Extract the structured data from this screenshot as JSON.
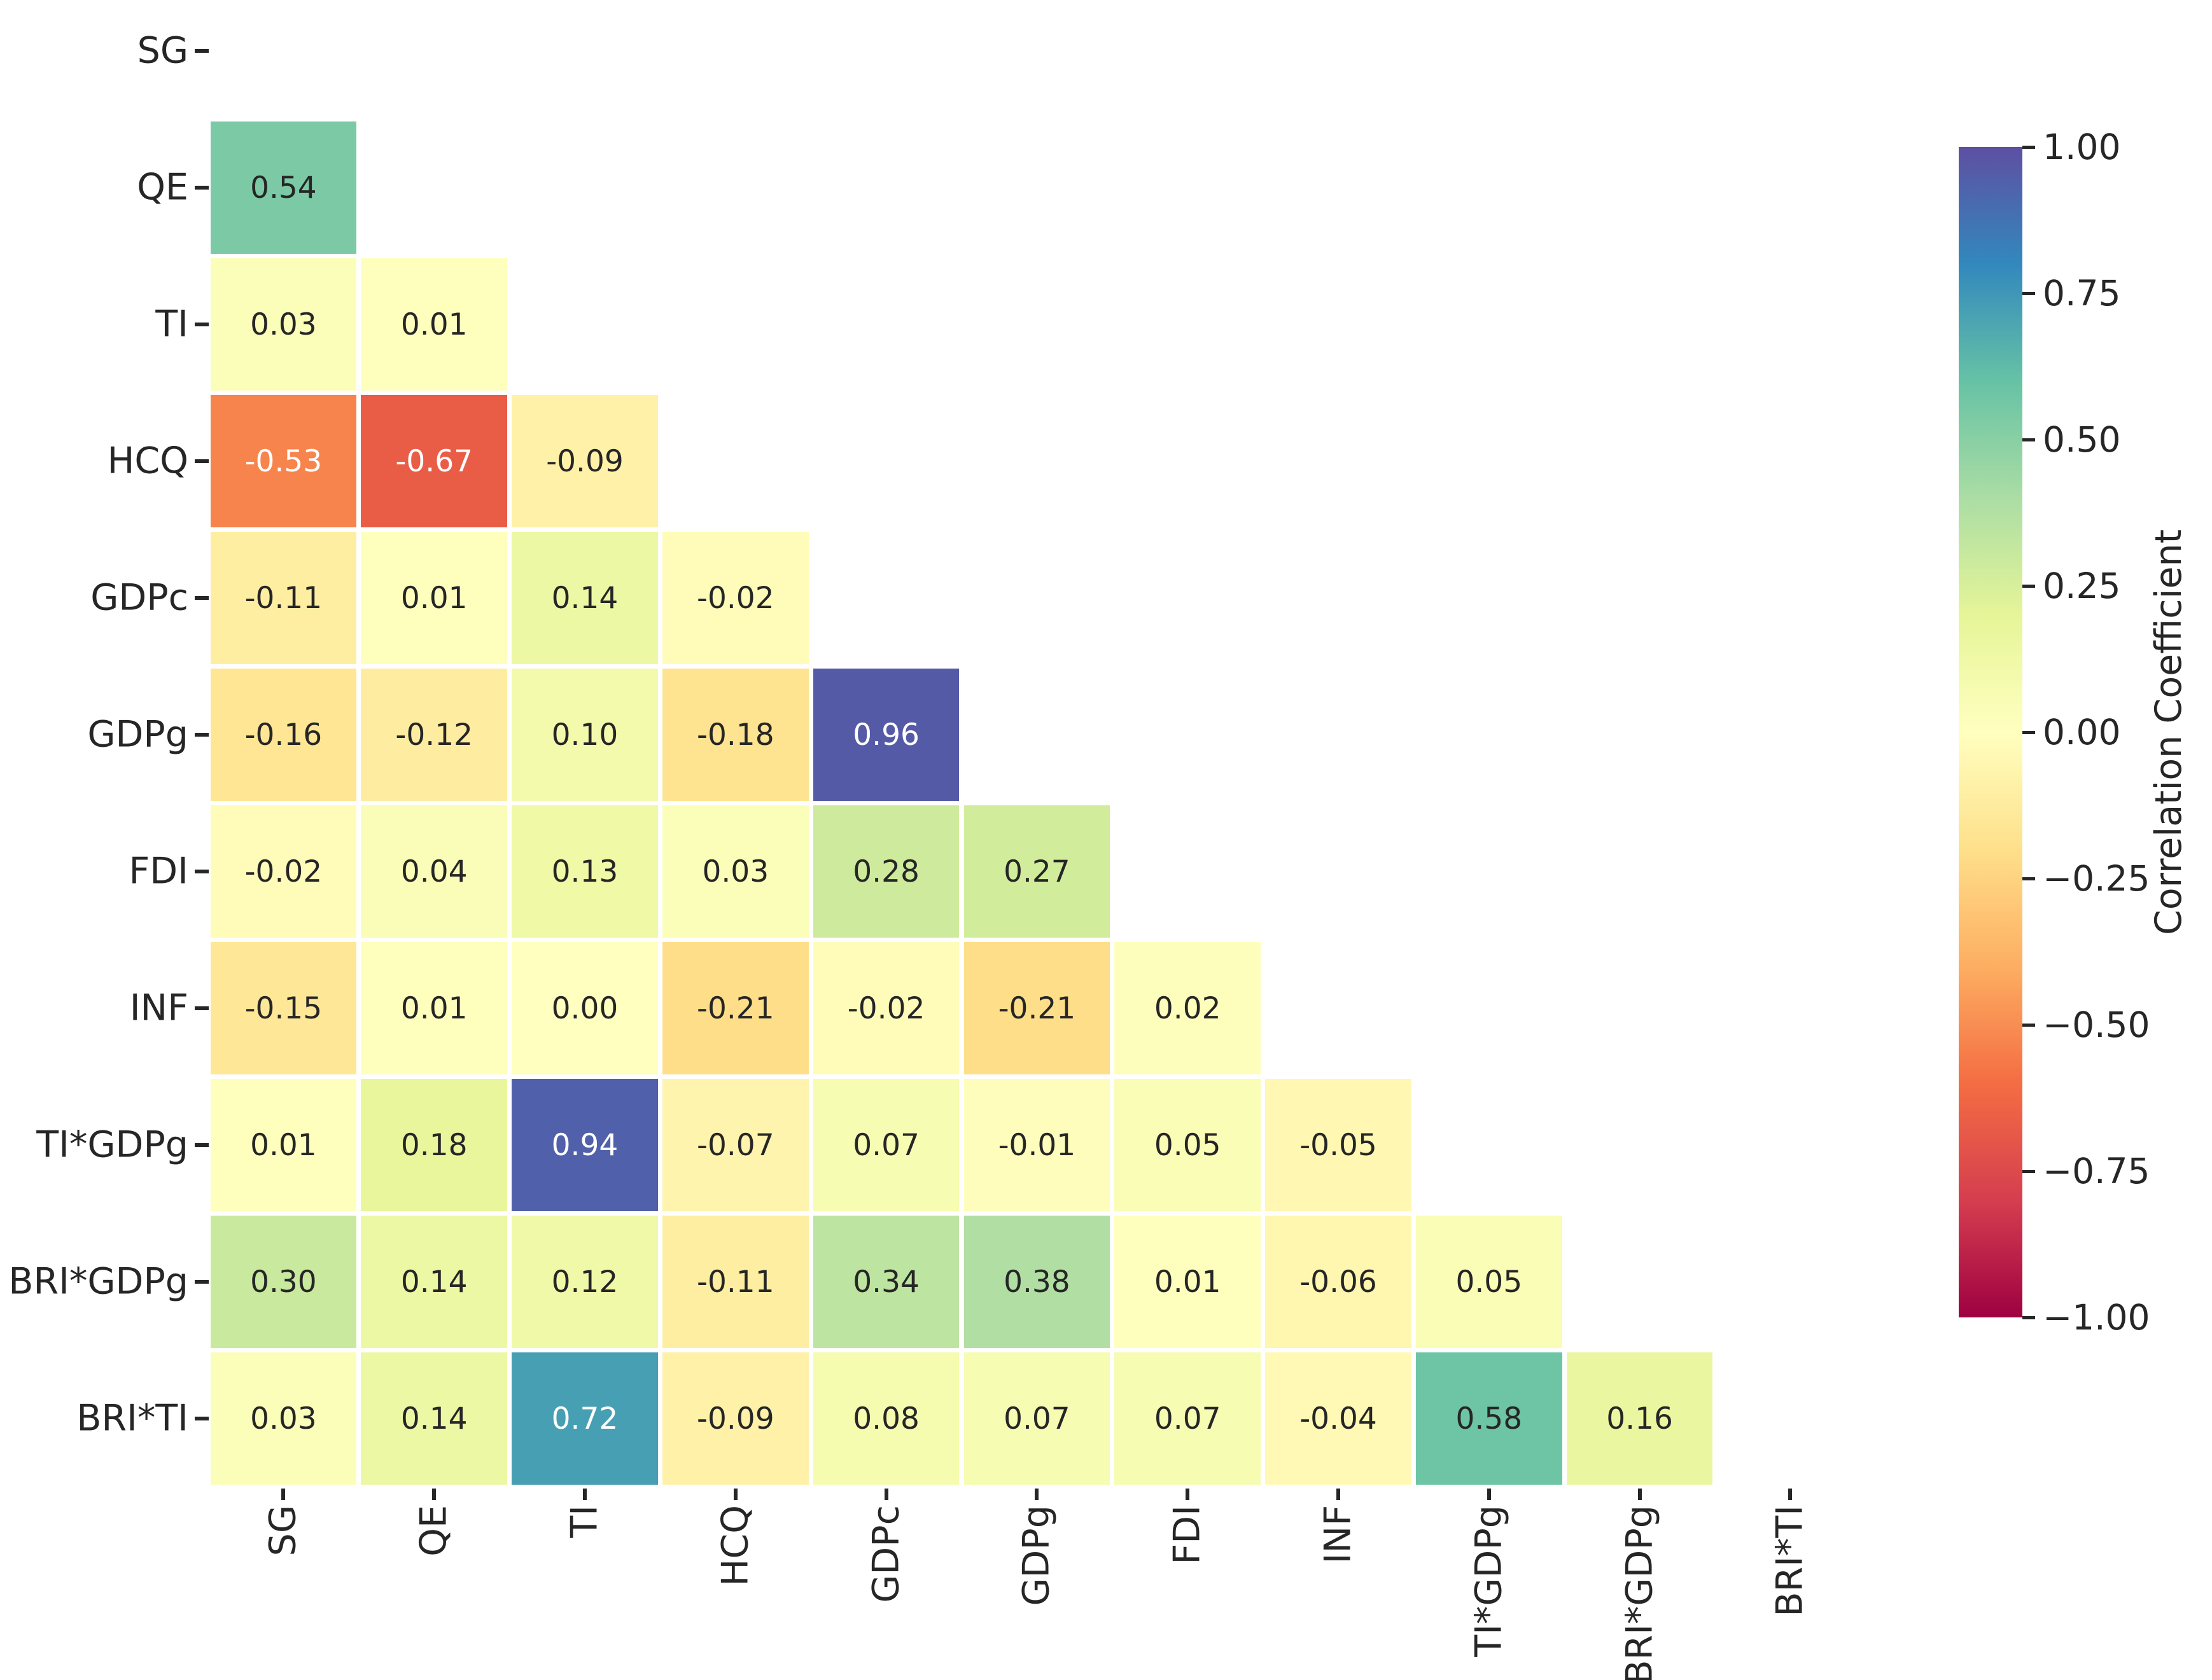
{
  "figure": {
    "background": "#ffffff",
    "axis_text_color": "#262626"
  },
  "chart_data": {
    "type": "heatmap",
    "title": "",
    "variables": [
      "SG",
      "QE",
      "TI",
      "HCQ",
      "GDPc",
      "GDPg",
      "FDI",
      "INF",
      "TI*GDPg",
      "BRI*GDPg",
      "BRI*TI"
    ],
    "mask": "upper triangle and diagonal hidden (lower-triangular correlation matrix)",
    "value_range": [
      -1,
      1
    ],
    "matrix_display": [
      [],
      [
        "0.54"
      ],
      [
        "0.03",
        "0.01"
      ],
      [
        "-0.53",
        "-0.67",
        "-0.09"
      ],
      [
        "-0.11",
        "0.01",
        "0.14",
        "-0.02"
      ],
      [
        "-0.16",
        "-0.12",
        "0.10",
        "-0.18",
        "0.96"
      ],
      [
        "-0.02",
        "0.04",
        "0.13",
        "0.03",
        "0.28",
        "0.27"
      ],
      [
        "-0.15",
        "0.01",
        "0.00",
        "-0.21",
        "-0.02",
        "-0.21",
        "0.02"
      ],
      [
        "0.01",
        "0.18",
        "0.94",
        "-0.07",
        "0.07",
        "-0.01",
        "0.05",
        "-0.05"
      ],
      [
        "0.30",
        "0.14",
        "0.12",
        "-0.11",
        "0.34",
        "0.38",
        "0.01",
        "-0.06",
        "0.05"
      ],
      [
        "0.03",
        "0.14",
        "0.72",
        "-0.09",
        "0.08",
        "0.07",
        "0.07",
        "-0.04",
        "0.58",
        "0.16"
      ]
    ],
    "colorbar": {
      "label": "Correlation Coefficient",
      "tick_labels": [
        "1.00",
        "0.75",
        "0.50",
        "0.25",
        "0.00",
        "−0.25",
        "−0.50",
        "−0.75",
        "−1.00"
      ],
      "position": "right"
    },
    "colormap": {
      "name": "Spectral_r",
      "anchors_low_to_high": [
        "#9e0142",
        "#d53e4f",
        "#f46d43",
        "#fdae61",
        "#fee08b",
        "#ffffbf",
        "#e6f598",
        "#abdda4",
        "#66c2a5",
        "#3288bd",
        "#5e4fa2"
      ]
    },
    "annotation_text_colors": {
      "dark": "#262626",
      "light": "#ffffff"
    },
    "grid_line_color": "#ffffff"
  }
}
